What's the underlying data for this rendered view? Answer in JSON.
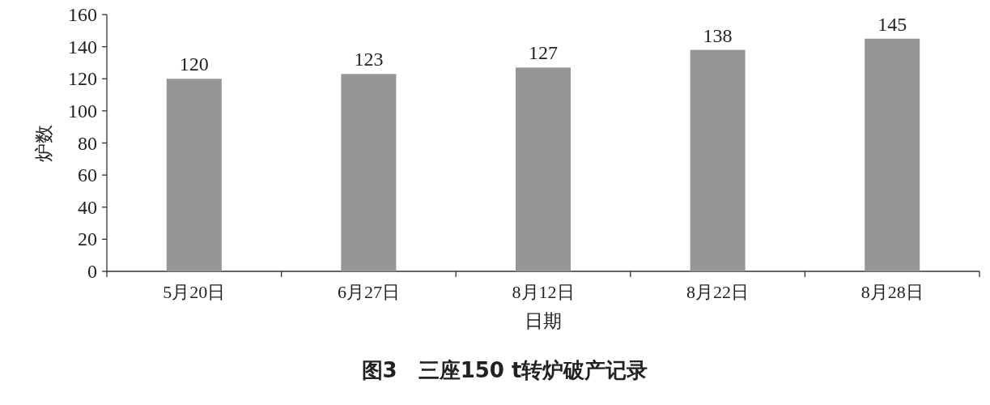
{
  "chart_data": {
    "type": "bar",
    "title": "图3　三座150 t转炉破产记录",
    "xlabel": "日期",
    "ylabel": "炉数",
    "categories": [
      "5月20日",
      "6月27日",
      "8月12日",
      "8月22日",
      "8月28日"
    ],
    "values": [
      120,
      123,
      127,
      138,
      145
    ],
    "color": "#969696",
    "ylim": [
      0,
      160
    ],
    "yticks": [
      0,
      20,
      40,
      60,
      80,
      100,
      120,
      140,
      160
    ],
    "data_labels": true
  }
}
